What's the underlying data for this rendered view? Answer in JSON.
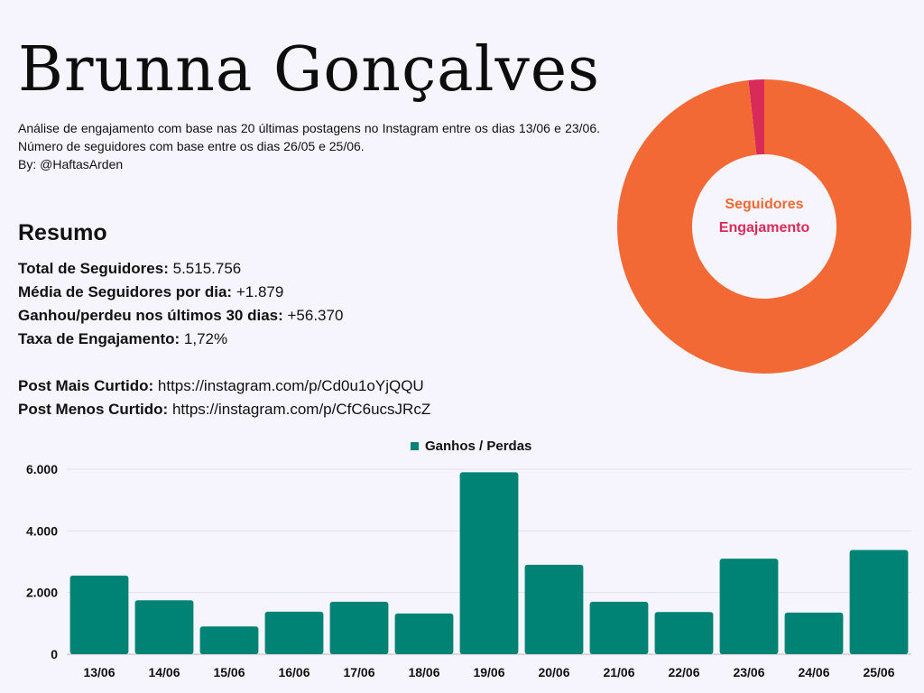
{
  "header": {
    "title": "Brunna Gonçalves",
    "description_line1": "Análise de engajamento com base nas 20 últimas postagens no Instagram entre os dias 13/06 e 23/06. Número de seguidores com base entre os dias 26/05 e 25/06.",
    "description_line2": "By: @HaftasArden"
  },
  "summary": {
    "heading": "Resumo",
    "total_followers_label": "Total de Seguidores:",
    "total_followers_value": "5.515.756",
    "avg_per_day_label": "Média de Seguidores por dia:",
    "avg_per_day_value": "+1.879",
    "gained_30_days_label": "Ganhou/perdeu nos últimos 30 dias:",
    "gained_30_days_value": "+56.370",
    "engagement_rate_label": "Taxa de Engajamento:",
    "engagement_rate_value": "1,72%",
    "most_liked_label": "Post Mais Curtido:",
    "most_liked_value": "https://instagram.com/p/Cd0u1oYjQQU",
    "least_liked_label": "Post Menos Curtido:",
    "least_liked_value": "https://instagram.com/p/CfC6ucsJRcZ"
  },
  "chart_data": [
    {
      "type": "pie",
      "labels": [
        "Seguidores",
        "Engajamento"
      ],
      "values": [
        98.28,
        1.72
      ],
      "colors": [
        "#f26935",
        "#d92b57"
      ],
      "legend_position": "center"
    },
    {
      "type": "bar",
      "categories": [
        "13/06",
        "14/06",
        "15/06",
        "16/06",
        "17/06",
        "18/06",
        "19/06",
        "20/06",
        "21/06",
        "22/06",
        "23/06",
        "24/06",
        "25/06"
      ],
      "series": [
        {
          "name": "Ganhos / Perdas",
          "values": [
            2550,
            1750,
            900,
            1380,
            1700,
            1320,
            5900,
            2900,
            1700,
            1370,
            3100,
            1350,
            3380
          ],
          "color": "#008374"
        }
      ],
      "ylim": [
        0,
        6000
      ],
      "yticks": [
        0,
        2000,
        4000,
        6000
      ],
      "ytick_labels": [
        "0",
        "2.000",
        "4.000",
        "6.000"
      ],
      "grid": true,
      "legend_position": "top-center"
    }
  ]
}
